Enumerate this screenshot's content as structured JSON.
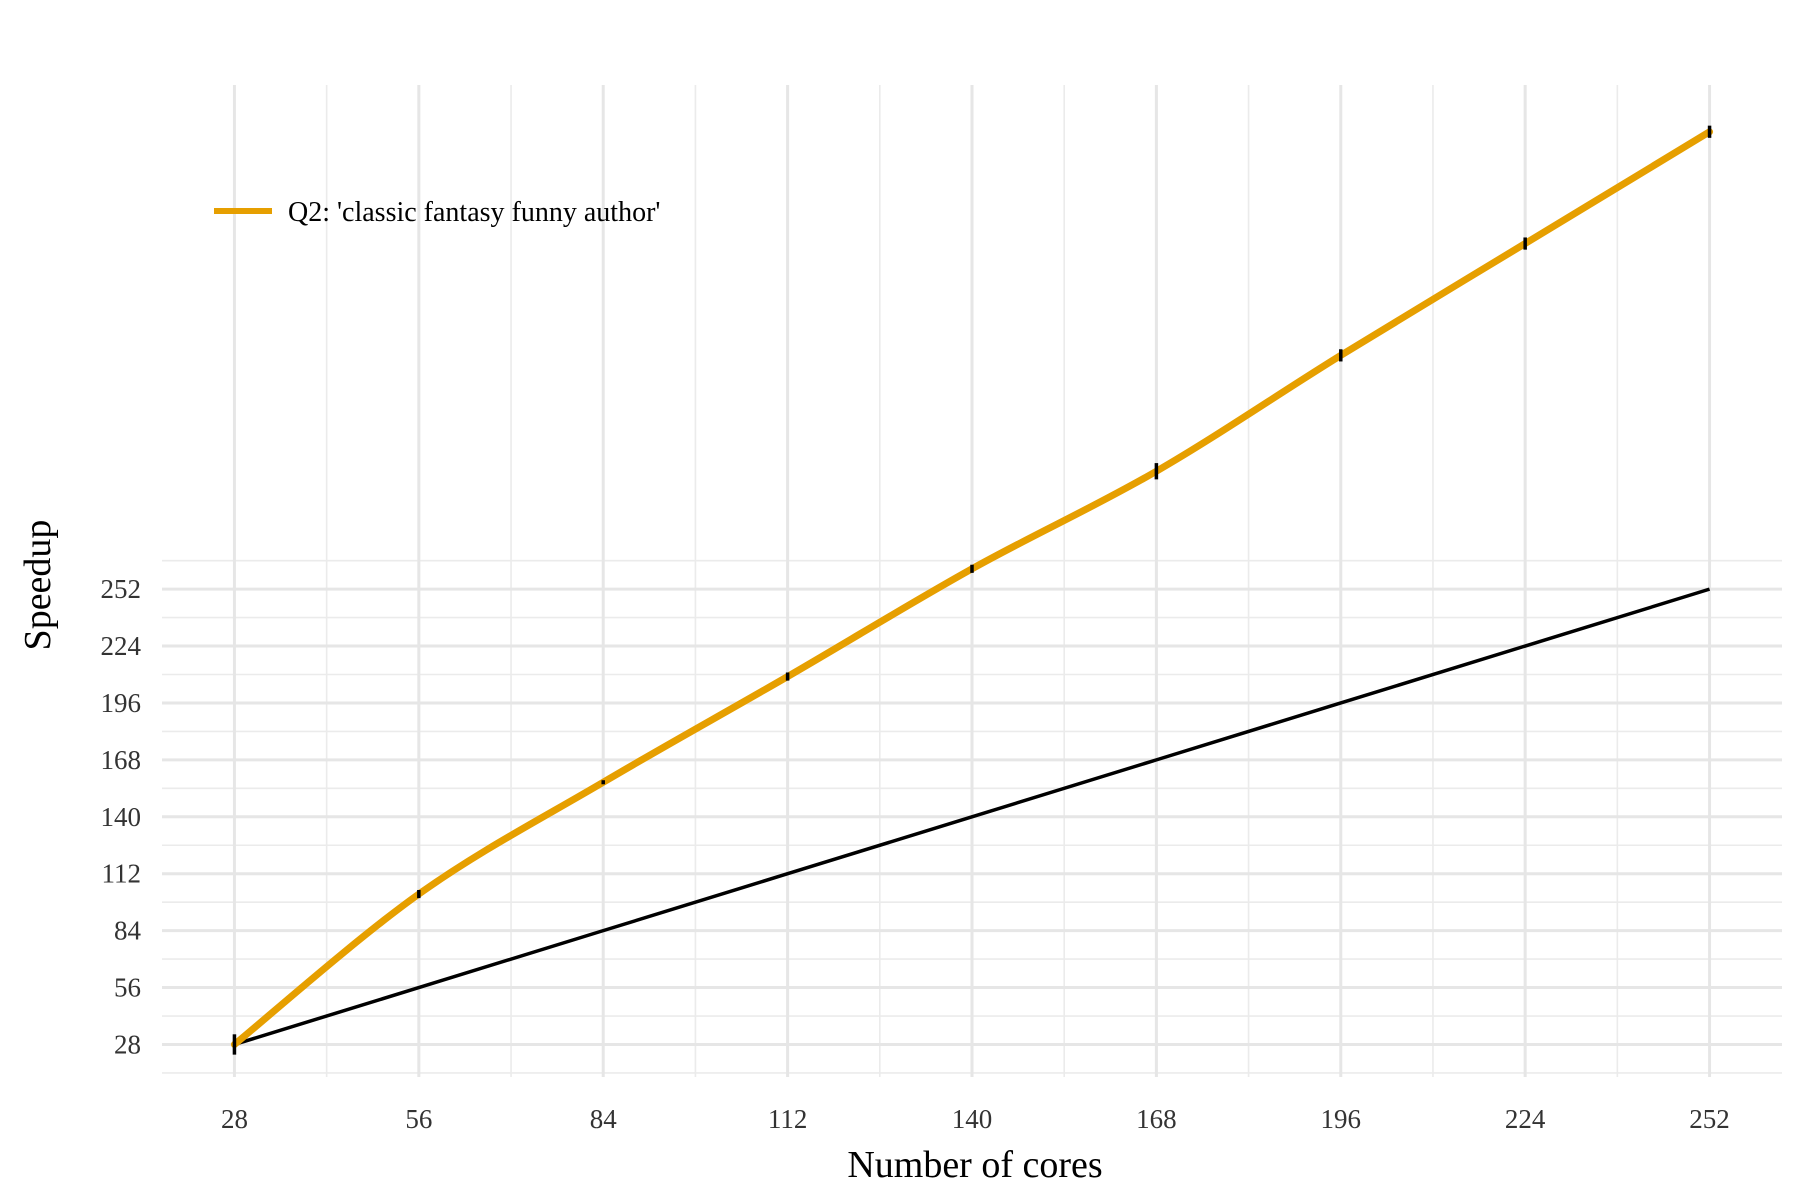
{
  "chart_data": {
    "type": "line",
    "title": "",
    "xlabel": "Number of cores",
    "ylabel": "Speedup",
    "x": [
      28,
      56,
      84,
      112,
      140,
      168,
      196,
      224,
      252
    ],
    "xlim": [
      17,
      263
    ],
    "ylim": [
      12,
      500
    ],
    "x_ticks": [
      28,
      56,
      84,
      112,
      140,
      168,
      196,
      224,
      252
    ],
    "y_ticks": [
      28,
      56,
      84,
      112,
      140,
      168,
      196,
      224,
      252
    ],
    "x_tick_labels": [
      "28",
      "56",
      "84",
      "112",
      "140",
      "168",
      "196",
      "224",
      "252"
    ],
    "y_tick_labels": [
      "28",
      "56",
      "84",
      "112",
      "140",
      "168",
      "196",
      "224",
      "252"
    ],
    "grid": true,
    "legend_position": "top-left",
    "series": [
      {
        "name": "Q2: 'classic fantasy funny author'",
        "color": "#E69F00",
        "values": [
          28,
          102,
          157,
          209,
          262,
          310,
          367,
          422,
          477
        ],
        "error": [
          5,
          2,
          1,
          2,
          2,
          4,
          3,
          3,
          3
        ]
      },
      {
        "color": "#000000",
        "values": [
          28,
          56,
          84,
          112,
          140,
          168,
          196,
          224,
          252
        ]
      }
    ]
  }
}
